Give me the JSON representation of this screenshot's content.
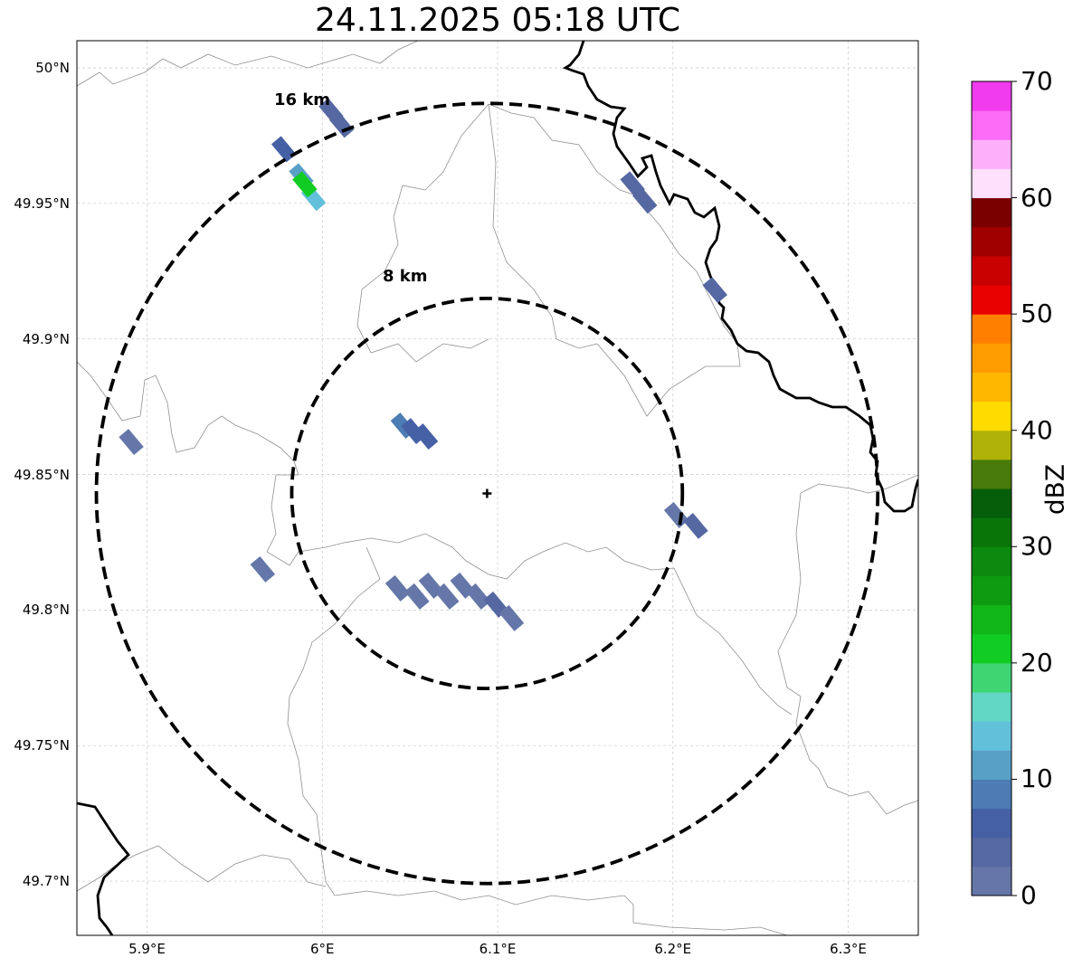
{
  "title": "24.11.2025 05:18 UTC",
  "map": {
    "lon_range": [
      5.86,
      6.34
    ],
    "lat_range": [
      49.68,
      50.01
    ],
    "lat_ticks": [
      {
        "value": 49.7,
        "label": "49.7°N"
      },
      {
        "value": 49.75,
        "label": "49.75°N"
      },
      {
        "value": 49.8,
        "label": "49.8°N"
      },
      {
        "value": 49.85,
        "label": "49.85°N"
      },
      {
        "value": 49.9,
        "label": "49.9°N"
      },
      {
        "value": 49.95,
        "label": "49.95°N"
      },
      {
        "value": 50.0,
        "label": "50°N"
      }
    ],
    "lon_ticks": [
      {
        "value": 5.9,
        "label": "5.9°E"
      },
      {
        "value": 6.0,
        "label": "6°E"
      },
      {
        "value": 6.1,
        "label": "6.1°E"
      },
      {
        "value": 6.2,
        "label": "6.2°E"
      },
      {
        "value": 6.3,
        "label": "6.3°E"
      }
    ],
    "radar_center": {
      "lon": 6.094,
      "lat": 49.843
    },
    "rings": [
      {
        "radius_km": 8,
        "label": "8 km"
      },
      {
        "radius_km": 16,
        "label": "16 km"
      }
    ]
  },
  "colorbar": {
    "unit": "dBZ",
    "min": 0,
    "max": 70,
    "ticks": [
      {
        "value": 0,
        "label": "0"
      },
      {
        "value": 10,
        "label": "10"
      },
      {
        "value": 20,
        "label": "20"
      },
      {
        "value": 30,
        "label": "30"
      },
      {
        "value": 40,
        "label": "40"
      },
      {
        "value": 50,
        "label": "50"
      },
      {
        "value": 60,
        "label": "60"
      },
      {
        "value": 70,
        "label": "70"
      }
    ],
    "colors": [
      "#6577a8",
      "#5568a2",
      "#4660a5",
      "#4c7cb3",
      "#59a0c7",
      "#62c0db",
      "#62d6c4",
      "#3ed672",
      "#11cd23",
      "#11b619",
      "#0e9b11",
      "#0c8a0f",
      "#097509",
      "#055e09",
      "#487b09",
      "#afb209",
      "#ffdb00",
      "#ffb700",
      "#ff9c00",
      "#ff7f00",
      "#e80000",
      "#c90000",
      "#a00000",
      "#7a0000",
      "#fde0fb",
      "#fdb0fa",
      "#fc6cf7",
      "#f03bee"
    ]
  },
  "echoes": [
    {
      "lon": 5.891,
      "lat": 49.862,
      "dbz": 2
    },
    {
      "lon": 5.966,
      "lat": 49.815,
      "dbz": 2
    },
    {
      "lon": 5.978,
      "lat": 49.97,
      "dbz": 5
    },
    {
      "lon": 5.988,
      "lat": 49.96,
      "dbz": 12
    },
    {
      "lon": 5.995,
      "lat": 49.952,
      "dbz": 14
    },
    {
      "lon": 5.99,
      "lat": 49.957,
      "dbz": 20
    },
    {
      "lon": 6.005,
      "lat": 49.984,
      "dbz": 4
    },
    {
      "lon": 6.011,
      "lat": 49.979,
      "dbz": 4
    },
    {
      "lon": 6.046,
      "lat": 49.868,
      "dbz": 9
    },
    {
      "lon": 6.052,
      "lat": 49.866,
      "dbz": 6
    },
    {
      "lon": 6.059,
      "lat": 49.864,
      "dbz": 5
    },
    {
      "lon": 6.043,
      "lat": 49.808,
      "dbz": 1
    },
    {
      "lon": 6.054,
      "lat": 49.805,
      "dbz": 1
    },
    {
      "lon": 6.062,
      "lat": 49.809,
      "dbz": 1
    },
    {
      "lon": 6.071,
      "lat": 49.805,
      "dbz": 1
    },
    {
      "lon": 6.08,
      "lat": 49.809,
      "dbz": 1
    },
    {
      "lon": 6.089,
      "lat": 49.805,
      "dbz": 1
    },
    {
      "lon": 6.099,
      "lat": 49.802,
      "dbz": 3
    },
    {
      "lon": 6.108,
      "lat": 49.797,
      "dbz": 1
    },
    {
      "lon": 6.177,
      "lat": 49.957,
      "dbz": 3
    },
    {
      "lon": 6.184,
      "lat": 49.951,
      "dbz": 4
    },
    {
      "lon": 6.224,
      "lat": 49.918,
      "dbz": 3
    },
    {
      "lon": 6.202,
      "lat": 49.835,
      "dbz": 1
    },
    {
      "lon": 6.213,
      "lat": 49.831,
      "dbz": 4
    }
  ]
}
